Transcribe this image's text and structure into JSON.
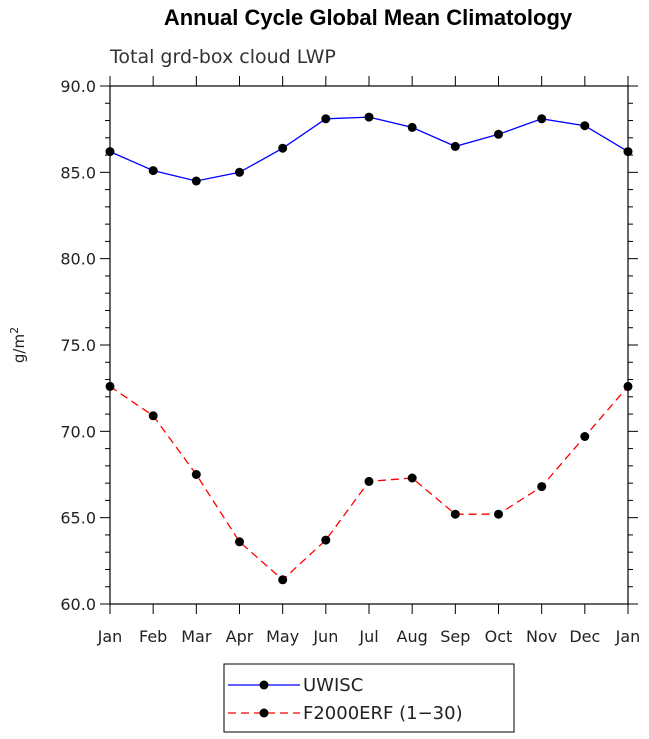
{
  "chart_data": {
    "type": "line",
    "title": "Annual Cycle Global Mean Climatology",
    "subtitle": "Total grd-box cloud LWP",
    "ylabel_base": "g/m",
    "ylabel_sup": "2",
    "xlabel": "",
    "categories": [
      "Jan",
      "Feb",
      "Mar",
      "Apr",
      "May",
      "Jun",
      "Jul",
      "Aug",
      "Sep",
      "Oct",
      "Nov",
      "Dec",
      "Jan"
    ],
    "ylim": [
      60.0,
      90.0
    ],
    "yticks": [
      "60.0",
      "65.0",
      "70.0",
      "75.0",
      "80.0",
      "85.0",
      "90.0"
    ],
    "series": [
      {
        "name": "UWISC",
        "color": "#0000ff",
        "dash": "solid",
        "values": [
          86.2,
          85.1,
          84.5,
          85.0,
          86.4,
          88.1,
          88.2,
          87.6,
          86.5,
          87.2,
          88.1,
          87.7,
          86.2
        ]
      },
      {
        "name": "F2000ERF (1-30)",
        "color": "#ff0000",
        "dash": "dashed",
        "values": [
          72.6,
          70.9,
          67.5,
          63.6,
          61.4,
          63.7,
          67.1,
          67.3,
          65.2,
          65.2,
          66.8,
          69.7,
          72.6
        ]
      }
    ],
    "legend": {
      "position": "bottom-center",
      "entries": [
        "UWISC",
        "F2000ERF (1−30)"
      ]
    }
  }
}
